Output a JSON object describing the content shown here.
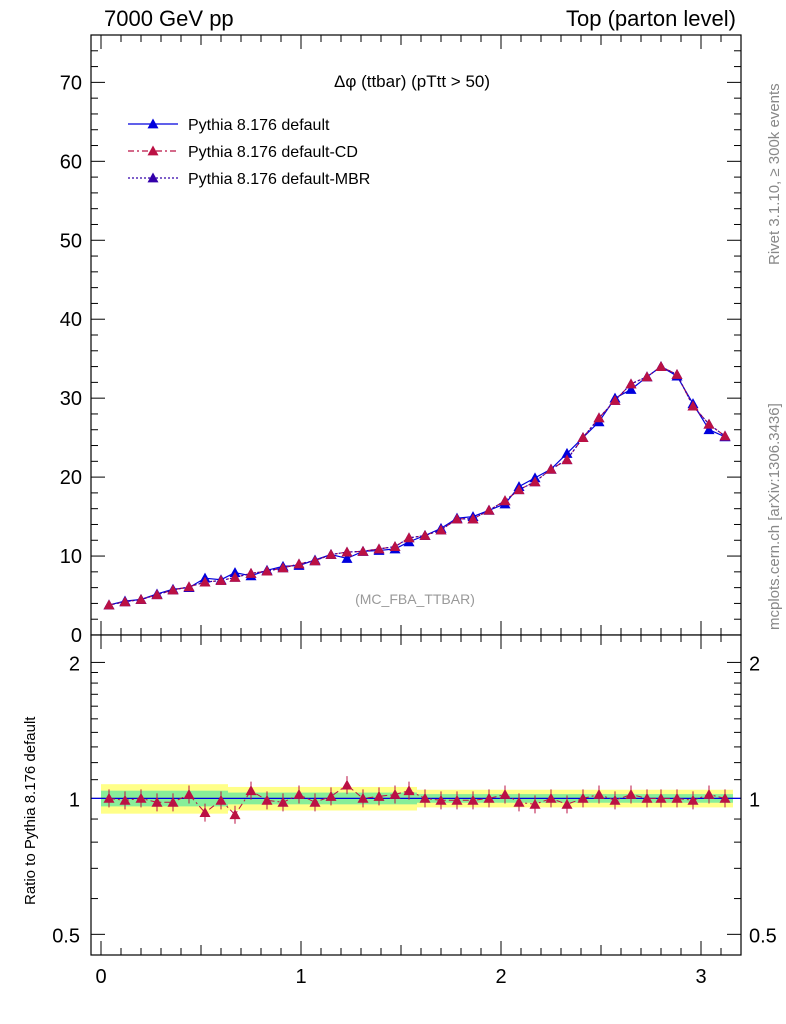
{
  "header": {
    "left": "7000 GeV pp",
    "right": "Top (parton level)"
  },
  "side": {
    "rivet": "Rivet 3.1.10, ≥ 300k events",
    "mcplots": "mcplots.cern.ch [arXiv:1306.3436]"
  },
  "chart_data": [
    {
      "type": "line",
      "title": "Δφ (ttbar) (pTtt > 50)",
      "watermark": "(MC_FBA_TTBAR)",
      "xlabel": "",
      "ylabel": "",
      "xlim": [
        -0.05,
        3.2
      ],
      "ylim": [
        0,
        76
      ],
      "yticks": [
        0,
        10,
        20,
        30,
        40,
        50,
        60,
        70
      ],
      "ytick_labels": [
        "0",
        "10",
        "20",
        "30",
        "40",
        "50",
        "60",
        "70"
      ],
      "legend_position": "top-left",
      "x": [
        0.04,
        0.12,
        0.2,
        0.28,
        0.36,
        0.44,
        0.52,
        0.6,
        0.67,
        0.75,
        0.83,
        0.91,
        0.99,
        1.07,
        1.15,
        1.23,
        1.31,
        1.39,
        1.47,
        1.54,
        1.62,
        1.7,
        1.78,
        1.86,
        1.94,
        2.02,
        2.09,
        2.17,
        2.25,
        2.33,
        2.41,
        2.49,
        2.57,
        2.65,
        2.73,
        2.8,
        2.88,
        2.96,
        3.04,
        3.12
      ],
      "series": [
        {
          "name": "Pythia 8.176 default",
          "color": "#0000dd",
          "dash": "solid",
          "values": [
            3.8,
            4.3,
            4.5,
            5.2,
            5.8,
            6.0,
            7.2,
            7.0,
            7.9,
            7.5,
            8.2,
            8.7,
            8.8,
            9.5,
            10.2,
            9.7,
            10.6,
            10.7,
            10.9,
            11.8,
            12.6,
            13.5,
            14.8,
            15.0,
            15.8,
            16.6,
            18.8,
            19.9,
            21.0,
            23.0,
            25.0,
            27.0,
            30.0,
            31.1,
            32.7,
            34.0,
            32.8,
            29.3,
            26.0,
            25.1
          ]
        },
        {
          "name": "Pythia 8.176 default-CD",
          "color": "#bb1144",
          "dash": "6,3,2,3",
          "values": [
            3.8,
            4.2,
            4.5,
            5.1,
            5.7,
            6.1,
            6.7,
            6.9,
            7.3,
            7.8,
            8.1,
            8.5,
            9.0,
            9.4,
            10.2,
            10.5,
            10.6,
            10.9,
            11.2,
            12.3,
            12.6,
            13.3,
            14.7,
            14.7,
            15.8,
            17.0,
            18.4,
            19.4,
            21.0,
            22.2,
            25.0,
            27.5,
            29.7,
            31.8,
            32.7,
            34.0,
            33.0,
            29.0,
            26.7,
            25.2
          ]
        },
        {
          "name": "Pythia 8.176 default-MBR",
          "color": "#3300aa",
          "dash": "2,2",
          "values": [
            3.8,
            4.2,
            4.5,
            5.1,
            5.7,
            6.1,
            6.7,
            6.9,
            7.3,
            7.8,
            8.1,
            8.5,
            9.0,
            9.4,
            10.2,
            10.5,
            10.6,
            10.9,
            11.2,
            12.3,
            12.6,
            13.3,
            14.7,
            14.7,
            15.8,
            17.0,
            18.4,
            19.4,
            21.0,
            22.2,
            25.0,
            27.5,
            29.7,
            31.8,
            32.7,
            34.0,
            33.0,
            29.0,
            26.7,
            25.2
          ]
        }
      ]
    },
    {
      "type": "scatter",
      "ylabel": "Ratio to Pythia 8.176 default",
      "xlim": [
        -0.05,
        3.2
      ],
      "ylim": [
        0.45,
        2.3
      ],
      "log_y": true,
      "xticks": [
        0,
        1,
        2,
        3
      ],
      "xtick_labels": [
        "0",
        "1",
        "2",
        "3"
      ],
      "yticks": [
        0.5,
        1,
        2
      ],
      "ytick_labels": [
        "0.5",
        "1",
        "2"
      ],
      "x": [
        0.04,
        0.12,
        0.2,
        0.28,
        0.36,
        0.44,
        0.52,
        0.6,
        0.67,
        0.75,
        0.83,
        0.91,
        0.99,
        1.07,
        1.15,
        1.23,
        1.31,
        1.39,
        1.47,
        1.54,
        1.62,
        1.7,
        1.78,
        1.86,
        1.94,
        2.02,
        2.09,
        2.17,
        2.25,
        2.33,
        2.41,
        2.49,
        2.57,
        2.65,
        2.73,
        2.8,
        2.88,
        2.96,
        3.04,
        3.12
      ],
      "band_colors": {
        "yellow": "#ffff88",
        "green": "#88ee99"
      },
      "series": [
        {
          "name": "Pythia 8.176 default-CD",
          "color": "#bb1144",
          "values": [
            1.0,
            0.99,
            1.0,
            0.98,
            0.98,
            1.02,
            0.93,
            0.99,
            0.92,
            1.04,
            0.99,
            0.98,
            1.02,
            0.98,
            1.01,
            1.07,
            1.0,
            1.01,
            1.02,
            1.04,
            1.0,
            0.99,
            0.99,
            0.99,
            1.0,
            1.02,
            0.98,
            0.97,
            1.0,
            0.97,
            1.0,
            1.02,
            0.99,
            1.02,
            1.0,
            1.0,
            1.0,
            0.99,
            1.02,
            1.0
          ]
        }
      ]
    }
  ]
}
